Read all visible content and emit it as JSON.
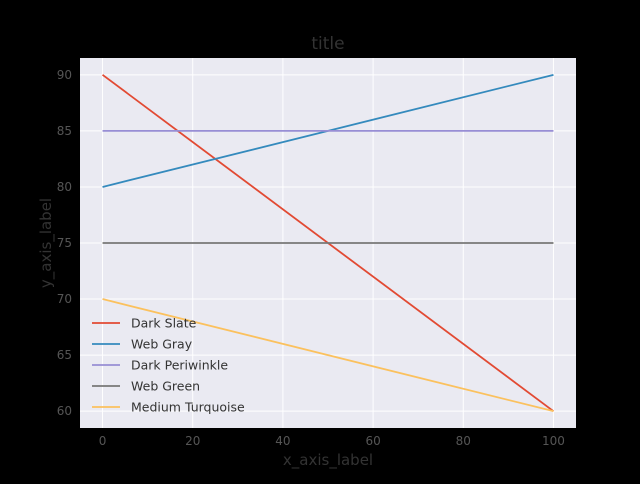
{
  "chart_data": {
    "type": "line",
    "title": "title",
    "xlabel": "x_axis_label",
    "ylabel": "y_axis_label",
    "xlim": [
      -5,
      105
    ],
    "ylim": [
      58.5,
      91.5
    ],
    "x_ticks": [
      0,
      20,
      40,
      60,
      80,
      100
    ],
    "y_ticks": [
      60,
      65,
      70,
      75,
      80,
      85,
      90
    ],
    "grid": true,
    "legend_position": "lower-left",
    "background_color": "#000000",
    "plot_background_color": "#EAEAF2",
    "grid_color": "#FFFFFF",
    "series": [
      {
        "name": "Dark Slate",
        "color": "#E24A33",
        "x": [
          0,
          100
        ],
        "y": [
          90,
          60
        ]
      },
      {
        "name": "Web Gray",
        "color": "#348ABD",
        "x": [
          0,
          100
        ],
        "y": [
          80,
          90
        ]
      },
      {
        "name": "Dark Periwinkle",
        "color": "#988ED5",
        "x": [
          0,
          100
        ],
        "y": [
          85,
          85
        ]
      },
      {
        "name": "Web Green",
        "color": "#777777",
        "x": [
          0,
          100
        ],
        "y": [
          75,
          75
        ]
      },
      {
        "name": "Medium Turquoise",
        "color": "#FBC15E",
        "x": [
          0,
          100
        ],
        "y": [
          70,
          60
        ]
      }
    ]
  }
}
